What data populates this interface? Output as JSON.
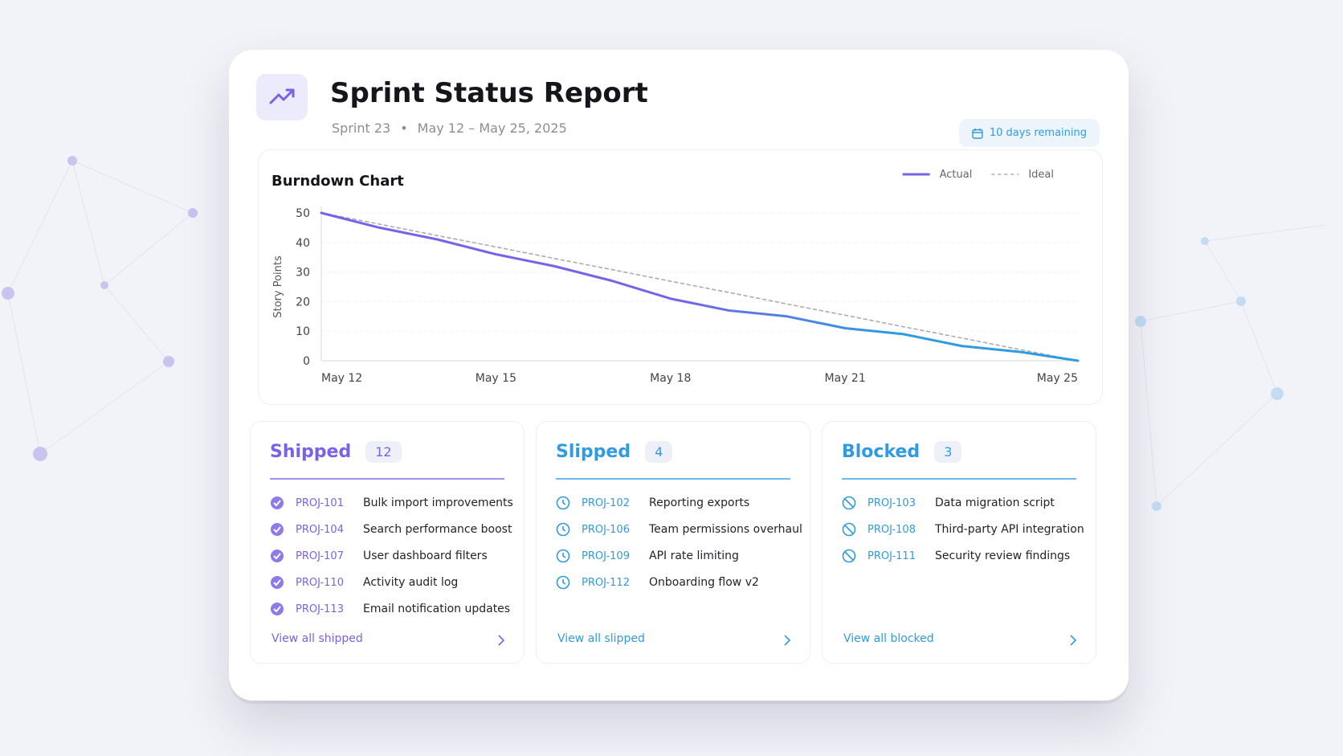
{
  "header": {
    "title": "Sprint Status Report",
    "sprint": "Sprint 23",
    "dates": "May 12 – May 25, 2025",
    "badge": "10 days remaining"
  },
  "chart_data": {
    "type": "line",
    "title": "Burndown Chart",
    "y_label": "Story Points",
    "categories": [
      "May 12",
      null,
      null,
      "May 15",
      null,
      null,
      "May 18",
      null,
      null,
      "May 21",
      null,
      null,
      null,
      "May 25"
    ],
    "series": [
      {
        "name": "Actual",
        "color": "#7b61e8",
        "gradient_to": "#2f9be0",
        "values": [
          50,
          45,
          41,
          36,
          32,
          27,
          21,
          17,
          15,
          11,
          9,
          5,
          3,
          0
        ]
      },
      {
        "name": "Ideal",
        "color": "#a9acb8",
        "dashed": true,
        "values": [
          50,
          46.2,
          42.3,
          38.5,
          34.6,
          30.8,
          26.9,
          23.1,
          19.2,
          15.4,
          11.5,
          7.7,
          3.8,
          0
        ]
      }
    ],
    "ylim": [
      0,
      50
    ],
    "yticks": [
      0,
      10,
      20,
      30,
      40,
      50
    ],
    "grid": true,
    "legend": "top-right"
  },
  "lists": [
    {
      "title": "Shipped",
      "count": 12,
      "color": "#7b61e8",
      "icon": "check",
      "link": "View all shipped",
      "items": [
        {
          "id": "PROJ-101",
          "name": "Bulk import improvements"
        },
        {
          "id": "PROJ-104",
          "name": "Search performance boost"
        },
        {
          "id": "PROJ-107",
          "name": "User dashboard filters"
        },
        {
          "id": "PROJ-110",
          "name": "Activity audit log"
        },
        {
          "id": "PROJ-113",
          "name": "Email notification updates"
        }
      ]
    },
    {
      "title": "Slipped",
      "count": 4,
      "color": "#2f9be0",
      "icon": "clock",
      "link": "View all slipped",
      "items": [
        {
          "id": "PROJ-102",
          "name": "Reporting exports"
        },
        {
          "id": "PROJ-106",
          "name": "Team permissions overhaul"
        },
        {
          "id": "PROJ-109",
          "name": "API rate limiting"
        },
        {
          "id": "PROJ-112",
          "name": "Onboarding flow v2"
        }
      ]
    },
    {
      "title": "Blocked",
      "count": 3,
      "color": "#2f9be0",
      "icon": "ban",
      "link": "View all blocked",
      "items": [
        {
          "id": "PROJ-103",
          "name": "Data migration script"
        },
        {
          "id": "PROJ-108",
          "name": "Third-party API integration"
        },
        {
          "id": "PROJ-111",
          "name": "Security review findings"
        }
      ]
    }
  ]
}
